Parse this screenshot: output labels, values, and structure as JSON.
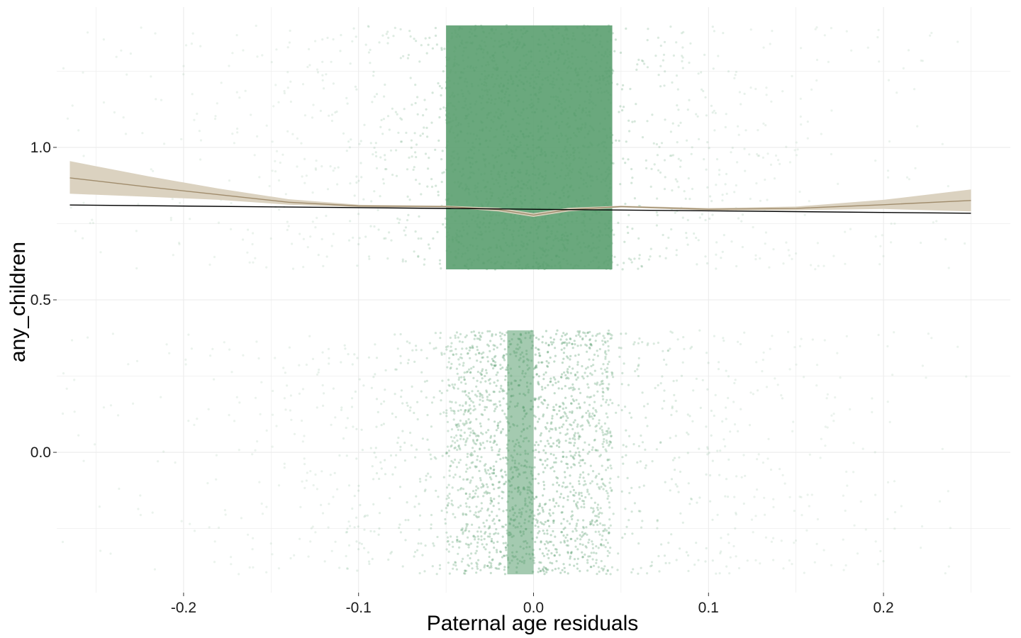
{
  "chart_data": {
    "type": "scatter",
    "title": "",
    "xlabel": "Paternal age residuals",
    "ylabel": "any_children",
    "xlim": [
      -0.2725,
      0.2725
    ],
    "ylim": [
      -0.46,
      1.46
    ],
    "x_ticks": [
      -0.2,
      -0.1,
      0.0,
      0.1,
      0.2
    ],
    "x_tick_labels": [
      "-0.2",
      "-0.1",
      "0.0",
      "0.1",
      "0.2"
    ],
    "y_ticks": [
      0.0,
      0.5,
      1.0
    ],
    "y_tick_labels": [
      "0.0",
      "0.5",
      "1.0"
    ],
    "grid": true,
    "legend": "none",
    "colors": {
      "points": "#5a9e6f",
      "loess_line": "#a08c6c",
      "loess_band": "#d9d0bd",
      "linear_fit": "#000000",
      "grid": "#ebebeb"
    },
    "jittered_points": {
      "description_levels": [
        0,
        1
      ],
      "jitter_height": 0.4,
      "x_range": [
        -0.27,
        0.25
      ],
      "dense_core": [
        -0.05,
        0.045
      ]
    },
    "series": [
      {
        "type": "loess_smooth",
        "x": [
          -0.265,
          -0.22,
          -0.18,
          -0.14,
          -0.1,
          -0.05,
          -0.02,
          0.0,
          0.02,
          0.05,
          0.1,
          0.15,
          0.2,
          0.25
        ],
        "y": [
          0.9,
          0.87,
          0.845,
          0.82,
          0.808,
          0.806,
          0.796,
          0.778,
          0.796,
          0.806,
          0.797,
          0.8,
          0.812,
          0.826
        ],
        "ymin": [
          0.848,
          0.838,
          0.828,
          0.812,
          0.804,
          0.803,
          0.79,
          0.772,
          0.79,
          0.803,
          0.793,
          0.794,
          0.798,
          0.79
        ],
        "ymax": [
          0.955,
          0.905,
          0.865,
          0.83,
          0.812,
          0.809,
          0.802,
          0.784,
          0.802,
          0.809,
          0.801,
          0.806,
          0.828,
          0.862
        ]
      },
      {
        "type": "linear_fit",
        "x": [
          -0.265,
          0.25
        ],
        "y": [
          0.811,
          0.784
        ]
      }
    ]
  }
}
